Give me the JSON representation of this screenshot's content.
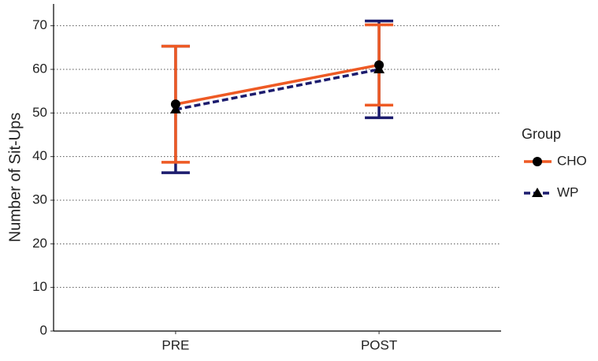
{
  "chart_data": {
    "type": "line",
    "categories": [
      "PRE",
      "POST"
    ],
    "y_label": "Number of Sit-Ups",
    "legend_title": "Group",
    "legend": "right",
    "grid": true,
    "ylim": [
      0,
      75
    ],
    "yticks": [
      0,
      10,
      20,
      30,
      40,
      50,
      60,
      70
    ],
    "series": [
      {
        "name": "CHO",
        "color": "#ee5a24",
        "linestyle": "solid",
        "marker": "circle",
        "values": [
          52,
          61
        ],
        "errors": [
          13.3,
          9.2
        ]
      },
      {
        "name": "WP",
        "color": "#1c1c6e",
        "linestyle": "dashed",
        "marker": "triangle",
        "values": [
          50.8,
          60
        ],
        "errors": [
          14.5,
          11.1
        ]
      }
    ]
  }
}
